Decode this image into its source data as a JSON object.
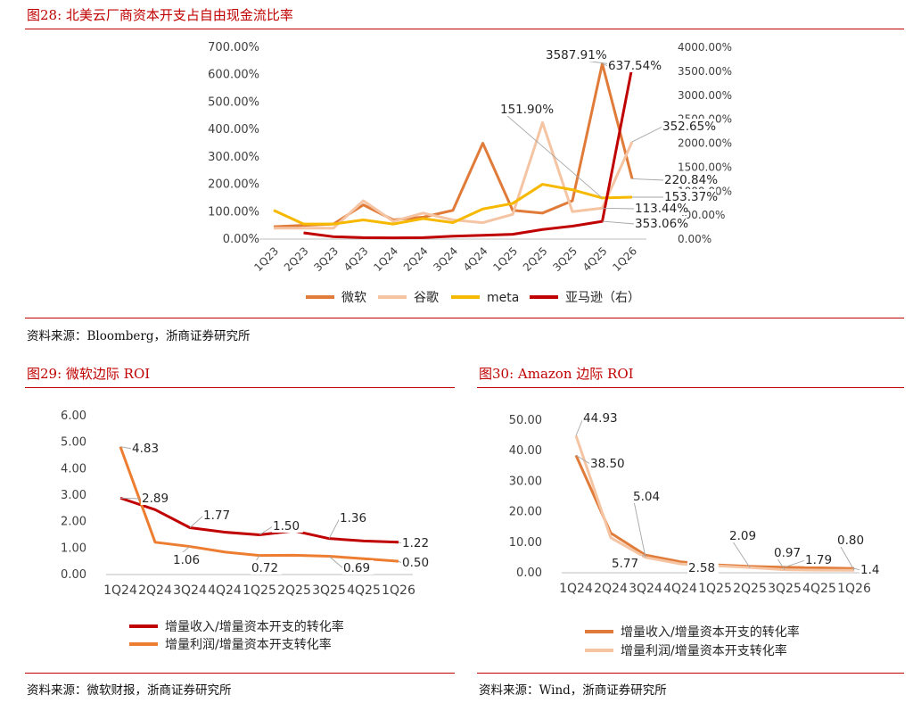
{
  "fig28": {
    "title": "图28:   北美云厂商资本开支占自由现金流比率",
    "source": "资料来源：Bloomberg，浙商证券研究所"
  },
  "fig29": {
    "title": "图29:   微软边际 ROI",
    "source": "资料来源：微软财报，浙商证券研究所"
  },
  "fig30": {
    "title": "图30:   Amazon 边际 ROI",
    "source": "资料来源：Wind，浙商证券研究所"
  },
  "chart_data": [
    {
      "type": "line",
      "categories": [
        "1Q23",
        "2Q23",
        "3Q23",
        "4Q23",
        "1Q24",
        "2Q24",
        "3Q24",
        "4Q24",
        "1Q25",
        "2Q25",
        "3Q25",
        "4Q25",
        "1Q26"
      ],
      "y_ticks": [
        "0.00%",
        "100.00%",
        "200.00%",
        "300.00%",
        "400.00%",
        "500.00%",
        "600.00%",
        "700.00%"
      ],
      "y2_ticks": [
        "0.00%",
        "500.00%",
        "1000.00%",
        "1500.00%",
        "2000.00%",
        "2500.00%",
        "3000.00%",
        "3500.00%",
        "4000.00%"
      ],
      "ylim": [
        0,
        700
      ],
      "y2lim": [
        0,
        4000
      ],
      "series": [
        {
          "name": "微软",
          "axis": "left",
          "color": "#e07b39",
          "values": [
            45,
            50,
            55,
            125,
            70,
            80,
            105,
            350,
            105,
            95,
            140,
            640,
            220
          ]
        },
        {
          "name": "谷歌",
          "axis": "left",
          "color": "#f5c4a3",
          "values": [
            40,
            40,
            40,
            140,
            65,
            95,
            70,
            60,
            90,
            425,
            100,
            113,
            355
          ]
        },
        {
          "name": "meta",
          "axis": "left",
          "color": "#f7b800",
          "values": [
            105,
            55,
            55,
            70,
            55,
            75,
            60,
            110,
            130,
            200,
            180,
            150,
            153
          ]
        },
        {
          "name": "亚马逊（右）",
          "axis": "right",
          "color": "#c00000",
          "values": [
            null,
            130,
            50,
            30,
            25,
            30,
            60,
            80,
            100,
            200,
            270,
            370,
            3588
          ]
        }
      ],
      "annotations": [
        {
          "text": "3587.91%"
        },
        {
          "text": "637.54%"
        },
        {
          "text": "151.90%"
        },
        {
          "text": "352.65%"
        },
        {
          "text": "220.84%"
        },
        {
          "text": "153.37%"
        },
        {
          "text": "113.44%"
        },
        {
          "text": "353.06%"
        }
      ],
      "legend_position": "bottom"
    },
    {
      "type": "line",
      "categories": [
        "1Q24",
        "2Q24",
        "3Q24",
        "4Q24",
        "1Q25",
        "2Q25",
        "3Q25",
        "4Q25",
        "1Q26"
      ],
      "y_ticks": [
        "0.00",
        "1.00",
        "2.00",
        "3.00",
        "4.00",
        "5.00",
        "6.00"
      ],
      "ylim": [
        0,
        6
      ],
      "series": [
        {
          "name": "增量收入/增量资本开支的转化率",
          "color": "#c00000",
          "values": [
            2.89,
            2.45,
            1.77,
            1.6,
            1.5,
            1.65,
            1.36,
            1.27,
            1.22
          ]
        },
        {
          "name": "增量利润/增量资本开支转化率",
          "color": "#ed7d31",
          "values": [
            4.83,
            1.22,
            1.06,
            0.85,
            0.72,
            0.73,
            0.69,
            0.6,
            0.5
          ]
        }
      ],
      "annotations": [
        {
          "text": "4.83"
        },
        {
          "text": "2.89"
        },
        {
          "text": "1.77"
        },
        {
          "text": "1.50"
        },
        {
          "text": "1.36"
        },
        {
          "text": "1.22"
        },
        {
          "text": "1.06"
        },
        {
          "text": "0.72"
        },
        {
          "text": "0.69"
        },
        {
          "text": "0.50"
        }
      ],
      "legend_position": "bottom"
    },
    {
      "type": "line",
      "categories": [
        "1Q24",
        "2Q24",
        "3Q24",
        "4Q24",
        "1Q25",
        "2Q25",
        "3Q25",
        "4Q25",
        "1Q26"
      ],
      "y_ticks": [
        "0.00",
        "10.00",
        "20.00",
        "30.00",
        "40.00",
        "50.00"
      ],
      "ylim": [
        0,
        50
      ],
      "series": [
        {
          "name": "增量收入/增量资本开支的转化率",
          "color": "#e07b39",
          "values": [
            38.5,
            13.0,
            5.77,
            3.6,
            2.58,
            2.09,
            1.79,
            1.6,
            1.4
          ]
        },
        {
          "name": "增量利润/增量资本开支转化率",
          "color": "#f5c4a3",
          "values": [
            44.93,
            11.5,
            5.04,
            2.9,
            2.3,
            1.7,
            0.97,
            0.85,
            0.8
          ]
        }
      ],
      "annotations": [
        {
          "text": "44.93"
        },
        {
          "text": "38.50"
        },
        {
          "text": "5.04"
        },
        {
          "text": "5.77"
        },
        {
          "text": "2.09"
        },
        {
          "text": "2.58"
        },
        {
          "text": "0.97"
        },
        {
          "text": "1.79"
        },
        {
          "text": "0.80"
        },
        {
          "text": "1.4"
        }
      ],
      "legend_position": "bottom"
    }
  ]
}
